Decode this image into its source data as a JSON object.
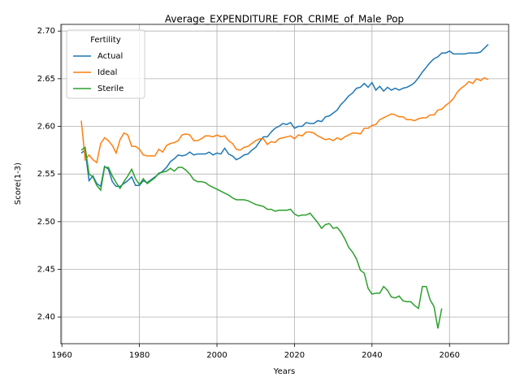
{
  "chart_data": {
    "type": "line",
    "title": "Average_EXPENDITURE_FOR_CRIME_of_Male_Pop",
    "x_label": "Years",
    "y_label": "Score(1-3)",
    "legend_title": "Fertility",
    "legend_position": "upper-left",
    "grid": true,
    "xlim": [
      1959.75,
      2075.25
    ],
    "ylim": [
      2.372,
      2.707
    ],
    "xticks": [
      1960,
      1980,
      2000,
      2020,
      2040,
      2060
    ],
    "yticks": [
      {
        "value": 2.4,
        "label": "2.40"
      },
      {
        "value": 2.45,
        "label": "2.45"
      },
      {
        "value": 2.5,
        "label": "2.50"
      },
      {
        "value": 2.55,
        "label": "2.55"
      },
      {
        "value": 2.6,
        "label": "2.60"
      },
      {
        "value": 2.65,
        "label": "2.65"
      },
      {
        "value": 2.7,
        "label": "2.70"
      }
    ],
    "x": [
      1965,
      1966,
      1967,
      1968,
      1969,
      1970,
      1971,
      1972,
      1973,
      1974,
      1975,
      1976,
      1977,
      1978,
      1979,
      1980,
      1981,
      1982,
      1983,
      1984,
      1985,
      1986,
      1987,
      1988,
      1989,
      1990,
      1991,
      1992,
      1993,
      1994,
      1995,
      1996,
      1997,
      1998,
      1999,
      2000,
      2001,
      2002,
      2003,
      2004,
      2005,
      2006,
      2007,
      2008,
      2009,
      2010,
      2011,
      2012,
      2013,
      2014,
      2015,
      2016,
      2017,
      2018,
      2019,
      2020,
      2021,
      2022,
      2023,
      2024,
      2025,
      2026,
      2027,
      2028,
      2029,
      2030,
      2031,
      2032,
      2033,
      2034,
      2035,
      2036,
      2037,
      2038,
      2039,
      2040,
      2041,
      2042,
      2043,
      2044,
      2045,
      2046,
      2047,
      2048,
      2049,
      2050,
      2051,
      2052,
      2053,
      2054,
      2055,
      2056,
      2057,
      2058,
      2059,
      2060,
      2061,
      2062,
      2063,
      2064,
      2065,
      2066,
      2067,
      2068,
      2069,
      2070
    ],
    "series": [
      {
        "name": "Actual",
        "color": "#1f77b4",
        "values": [
          2.572,
          2.575,
          2.543,
          2.548,
          2.54,
          2.537,
          2.558,
          2.555,
          2.542,
          2.537,
          2.537,
          2.54,
          2.543,
          2.547,
          2.538,
          2.538,
          2.543,
          2.541,
          2.544,
          2.547,
          2.55,
          2.553,
          2.557,
          2.563,
          2.566,
          2.57,
          2.569,
          2.57,
          2.573,
          2.57,
          2.571,
          2.571,
          2.571,
          2.573,
          2.57,
          2.572,
          2.571,
          2.577,
          2.571,
          2.569,
          2.565,
          2.567,
          2.57,
          2.571,
          2.575,
          2.578,
          2.584,
          2.589,
          2.589,
          2.594,
          2.598,
          2.6,
          2.603,
          2.602,
          2.604,
          2.598,
          2.6,
          2.6,
          2.604,
          2.603,
          2.603,
          2.606,
          2.605,
          2.61,
          2.611,
          2.614,
          2.617,
          2.623,
          2.627,
          2.632,
          2.635,
          2.64,
          2.641,
          2.645,
          2.641,
          2.646,
          2.638,
          2.642,
          2.637,
          2.641,
          2.638,
          2.64,
          2.638,
          2.64,
          2.641,
          2.643,
          2.646,
          2.651,
          2.657,
          2.662,
          2.667,
          2.671,
          2.673,
          2.677,
          2.677,
          2.679,
          2.676,
          2.676,
          2.676,
          2.676,
          2.677,
          2.677,
          2.677,
          2.678,
          2.682,
          2.686
        ]
      },
      {
        "name": "Ideal",
        "color": "#ff7f0e",
        "values": [
          2.606,
          2.565,
          2.57,
          2.565,
          2.562,
          2.582,
          2.588,
          2.585,
          2.58,
          2.572,
          2.586,
          2.593,
          2.591,
          2.579,
          2.579,
          2.576,
          2.57,
          2.569,
          2.569,
          2.569,
          2.576,
          2.573,
          2.58,
          2.582,
          2.583,
          2.585,
          2.591,
          2.592,
          2.591,
          2.585,
          2.585,
          2.587,
          2.59,
          2.59,
          2.589,
          2.591,
          2.589,
          2.59,
          2.585,
          2.582,
          2.576,
          2.575,
          2.578,
          2.579,
          2.582,
          2.585,
          2.587,
          2.587,
          2.581,
          2.584,
          2.583,
          2.587,
          2.588,
          2.589,
          2.59,
          2.587,
          2.591,
          2.59,
          2.594,
          2.594,
          2.593,
          2.59,
          2.588,
          2.586,
          2.587,
          2.585,
          2.588,
          2.586,
          2.589,
          2.591,
          2.593,
          2.593,
          2.592,
          2.598,
          2.598,
          2.601,
          2.602,
          2.607,
          2.609,
          2.611,
          2.613,
          2.612,
          2.61,
          2.61,
          2.607,
          2.607,
          2.606,
          2.608,
          2.609,
          2.609,
          2.612,
          2.612,
          2.617,
          2.618,
          2.622,
          2.625,
          2.629,
          2.636,
          2.64,
          2.643,
          2.647,
          2.645,
          2.65,
          2.648,
          2.651,
          2.649
        ]
      },
      {
        "name": "Sterile",
        "color": "#2ca02c",
        "values": [
          2.575,
          2.578,
          2.55,
          2.547,
          2.538,
          2.533,
          2.557,
          2.557,
          2.548,
          2.541,
          2.535,
          2.542,
          2.548,
          2.555,
          2.545,
          2.539,
          2.545,
          2.54,
          2.543,
          2.546,
          2.551,
          2.552,
          2.553,
          2.556,
          2.553,
          2.557,
          2.557,
          2.554,
          2.55,
          2.544,
          2.542,
          2.542,
          2.541,
          2.538,
          2.536,
          2.534,
          2.532,
          2.53,
          2.528,
          2.525,
          2.523,
          2.523,
          2.523,
          2.522,
          2.52,
          2.518,
          2.517,
          2.516,
          2.513,
          2.513,
          2.511,
          2.512,
          2.512,
          2.512,
          2.513,
          2.508,
          2.506,
          2.507,
          2.507,
          2.509,
          2.504,
          2.499,
          2.493,
          2.497,
          2.498,
          2.493,
          2.494,
          2.489,
          2.482,
          2.473,
          2.468,
          2.461,
          2.449,
          2.446,
          2.43,
          2.424,
          2.425,
          2.425,
          2.432,
          2.428,
          2.421,
          2.42,
          2.422,
          2.417,
          2.416,
          2.416,
          2.412,
          2.409,
          2.432,
          2.432,
          2.418,
          2.411,
          2.388,
          2.409,
          null,
          null,
          null,
          null,
          null,
          null,
          null,
          null,
          null,
          null,
          null,
          null
        ]
      }
    ]
  }
}
